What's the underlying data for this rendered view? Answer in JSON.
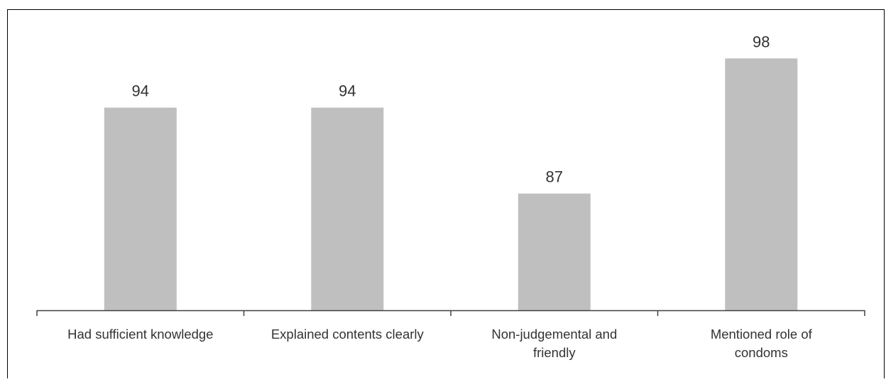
{
  "chart_data": {
    "type": "bar",
    "categories": [
      [
        "Had sufficient knowledge"
      ],
      [
        "Explained contents clearly"
      ],
      [
        "Non-judgemental and",
        "friendly"
      ],
      [
        "Mentioned role of",
        "condoms"
      ]
    ],
    "values": [
      94,
      94,
      87,
      98
    ],
    "data_labels": [
      "94",
      "94",
      "87",
      "98"
    ],
    "title": "",
    "xlabel": "",
    "ylabel": "",
    "ylim": [
      77.5,
      100
    ],
    "grid": false,
    "legend": "none",
    "colors": {
      "bar": "#bfbfbf",
      "axis": "#404040",
      "border": "#000000",
      "text": "#333333"
    }
  }
}
